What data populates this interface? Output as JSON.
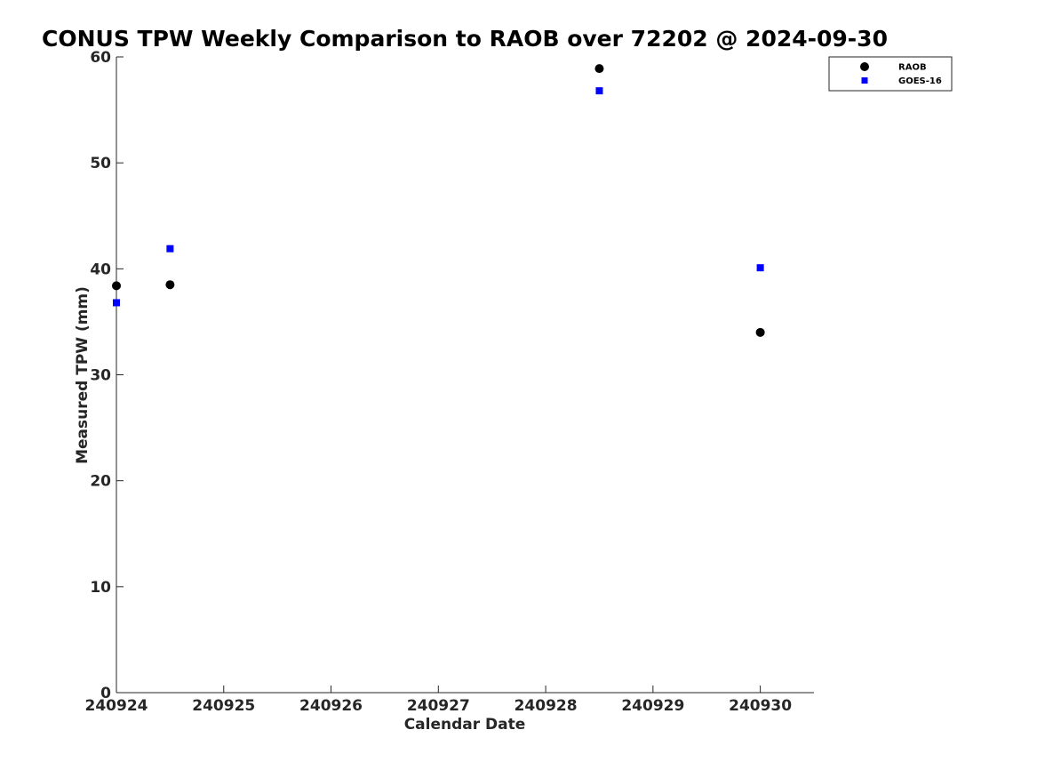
{
  "chart_data": {
    "type": "scatter",
    "title": "CONUS TPW Weekly Comparison to RAOB over 72202 @ 2024-09-30",
    "xlabel": "Calendar Date",
    "ylabel": "Measured TPW (mm)",
    "xlim": [
      240924,
      240930.5
    ],
    "ylim": [
      0,
      60
    ],
    "xticks": [
      240924,
      240925,
      240926,
      240927,
      240928,
      240929,
      240930
    ],
    "xtick_labels": [
      "240924",
      "240925",
      "240926",
      "240927",
      "240928",
      "240929",
      "240930"
    ],
    "yticks": [
      0,
      10,
      20,
      30,
      40,
      50,
      60
    ],
    "ytick_labels": [
      "0",
      "10",
      "20",
      "30",
      "40",
      "50",
      "60"
    ],
    "grid": false,
    "legend_position": "top-right",
    "series": [
      {
        "name": "RAOB",
        "marker": "circle",
        "color": "#000000",
        "x": [
          240924,
          240924.5,
          240928.5,
          240930
        ],
        "y": [
          38.4,
          38.5,
          58.9,
          34.0
        ]
      },
      {
        "name": "GOES-16",
        "marker": "square",
        "color": "#0000ff",
        "x": [
          240924,
          240924.5,
          240928.5,
          240930
        ],
        "y": [
          36.8,
          41.9,
          56.8,
          40.1
        ]
      }
    ]
  }
}
